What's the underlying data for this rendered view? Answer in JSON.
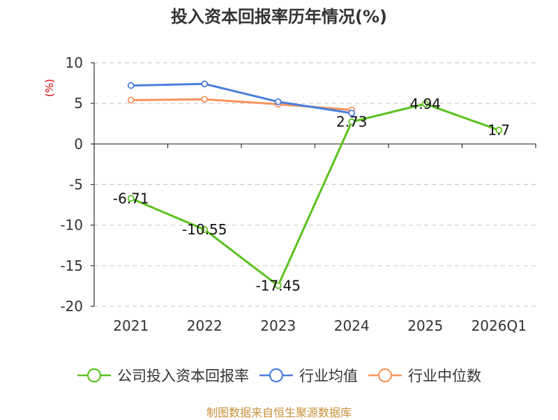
{
  "chart_data": {
    "type": "line",
    "title": "投入资本回报率历年情况(%)",
    "ylabel": "(%)",
    "categories": [
      "2021",
      "2022",
      "2023",
      "2024",
      "2025",
      "2026Q1"
    ],
    "ylim": [
      -20,
      10
    ],
    "yticks": [
      10,
      5,
      0,
      -5,
      -10,
      -15,
      -20
    ],
    "grid": true,
    "legend_position": "bottom",
    "series": [
      {
        "name": "公司投入资本回报率",
        "color": "#5cc11f",
        "values": [
          -6.71,
          -10.55,
          -17.45,
          2.73,
          4.94,
          1.7
        ],
        "labels": [
          "-6.71",
          "-10.55",
          "-17.45",
          "2.73",
          "4.94",
          "1.7"
        ]
      },
      {
        "name": "行业均值",
        "color": "#4a7fdb",
        "values": [
          7.2,
          7.4,
          5.2,
          3.8,
          null,
          null
        ]
      },
      {
        "name": "行业中位数",
        "color": "#f7935d",
        "values": [
          5.4,
          5.5,
          4.9,
          4.2,
          null,
          null
        ]
      }
    ]
  },
  "source": "制图数据来自恒生聚源数据库"
}
